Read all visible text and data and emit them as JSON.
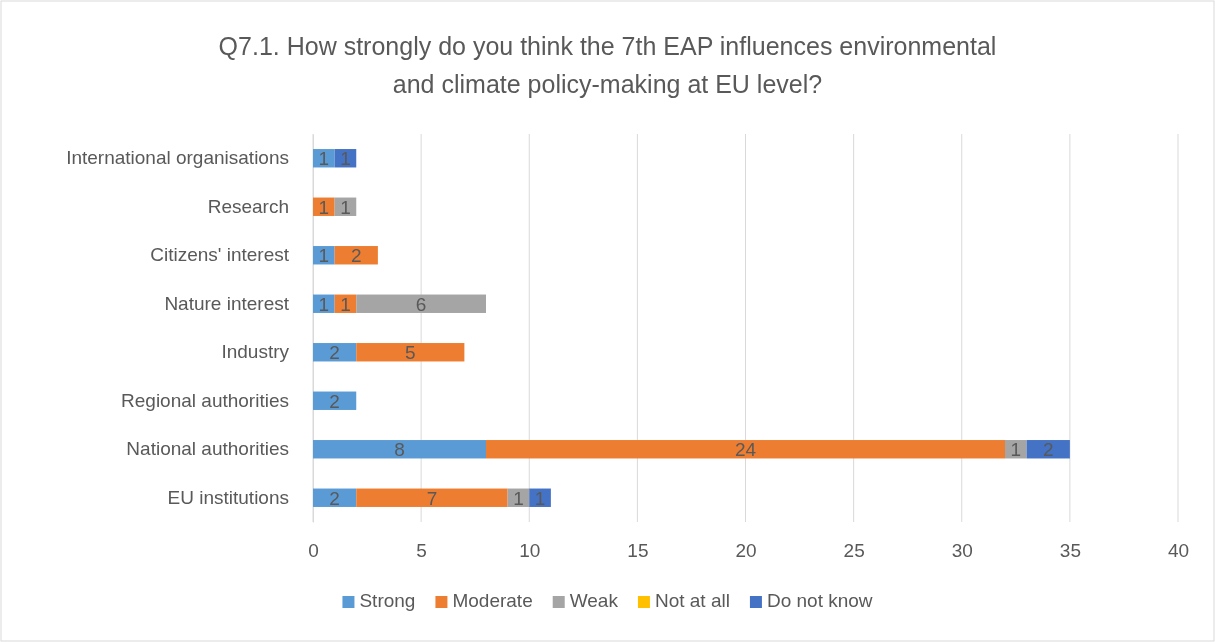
{
  "chart_data": {
    "type": "bar",
    "orientation": "horizontal",
    "stacked": true,
    "title": "Q7.1.  How strongly do you think the 7th EAP influences environmental and climate policy-making at EU level?",
    "categories": [
      "International organisations",
      "Research",
      "Citizens' interest",
      "Nature interest",
      "Industry",
      "Regional authorities",
      "National authorities",
      "EU institutions"
    ],
    "series": [
      {
        "name": "Strong",
        "color": "#5b9bd5",
        "values": [
          1,
          0,
          1,
          1,
          2,
          2,
          8,
          2
        ],
        "value_labels": [
          "1",
          null,
          "1",
          "1",
          "2",
          "2",
          "8",
          "2"
        ]
      },
      {
        "name": "Moderate",
        "color": "#ed7d31",
        "values": [
          0,
          1,
          2,
          1,
          5,
          0,
          24,
          7
        ],
        "value_labels": [
          null,
          "1",
          "2",
          "1",
          "5",
          null,
          "24",
          "7"
        ]
      },
      {
        "name": "Weak",
        "color": "#a5a5a5",
        "values": [
          0,
          1,
          0,
          6,
          0,
          0,
          1,
          1
        ],
        "value_labels": [
          null,
          "1",
          null,
          "6",
          null,
          null,
          "1",
          "1"
        ]
      },
      {
        "name": "Not at all",
        "color": "#ffc000",
        "values": [
          0,
          0,
          0,
          0,
          0,
          0,
          0,
          0
        ],
        "value_labels": [
          null,
          null,
          null,
          null,
          null,
          null,
          null,
          null
        ]
      },
      {
        "name": "Do not know",
        "color": "#4472c4",
        "values": [
          1,
          0,
          0,
          0,
          0,
          0,
          2,
          1
        ],
        "value_labels": [
          "1",
          null,
          null,
          null,
          null,
          null,
          "2",
          "1"
        ]
      }
    ],
    "xlim": [
      0,
      40
    ],
    "xticks": [
      0,
      5,
      10,
      15,
      20,
      25,
      30,
      35,
      40
    ],
    "grid": "x",
    "legend": "bottom"
  }
}
